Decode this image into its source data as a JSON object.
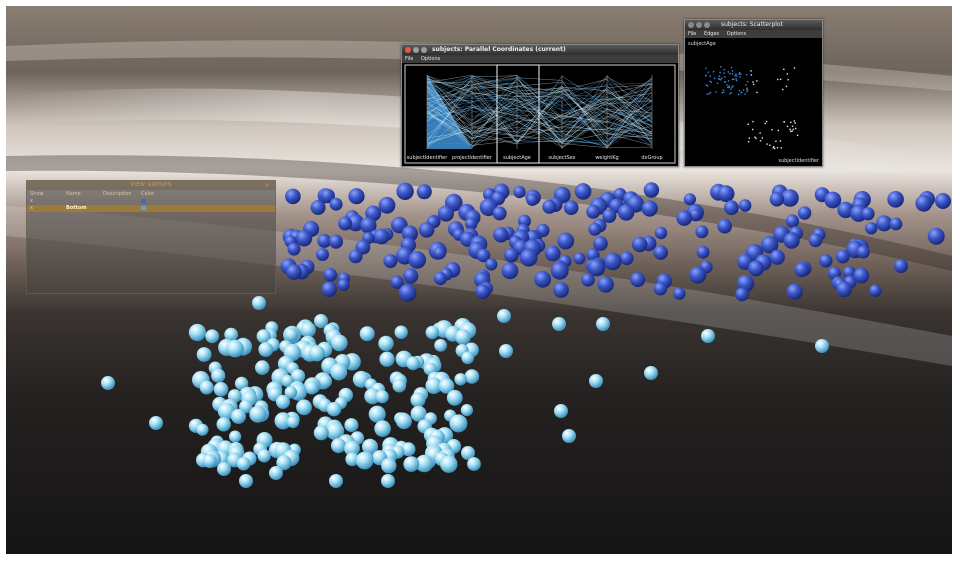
{
  "pc_window": {
    "title": "subjects: Parallel Coordinates (current)",
    "menu": [
      "File",
      "Options"
    ],
    "axes": [
      "subjectIdentifier",
      "projectIdentifier",
      "subjectAge",
      "subjectSex",
      "weightKg",
      "dxGroup"
    ]
  },
  "sp_window": {
    "title": "subjects: Scatterplot",
    "menu": [
      "File",
      "Edges",
      "Options"
    ],
    "y_label": "subjectAge",
    "x_label": "subjectIdentifier"
  },
  "groups_panel": {
    "title": "VIEW GROUPS",
    "close": "x",
    "columns": [
      "Show",
      "Name",
      "Description",
      "Color"
    ],
    "rows": [
      {
        "show": "x",
        "name": "",
        "description": "",
        "color": "#4a62c8",
        "selected": false
      },
      {
        "show": "x",
        "name": "Bottom",
        "description": "",
        "color": "#56a8d8",
        "selected": true
      }
    ]
  },
  "colors": {
    "upper_cluster": "#3a55c4",
    "lower_cluster": "#8fd4ee",
    "pc_highlight": "#3d8fd4"
  }
}
